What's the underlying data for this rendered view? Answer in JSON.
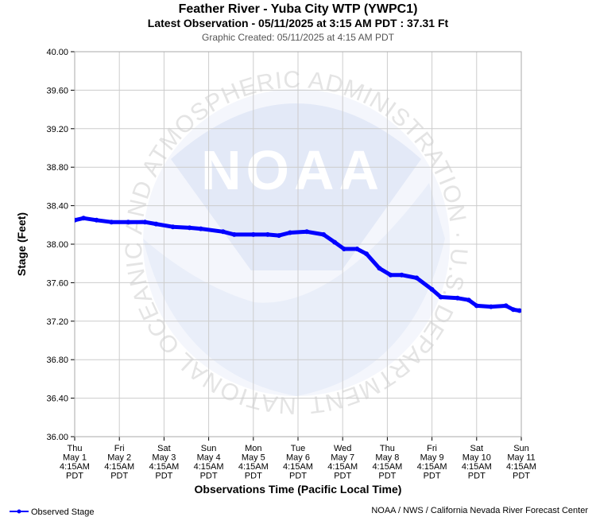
{
  "title": "Feather River - Yuba City WTP (YWPC1)",
  "subtitle": "Latest Observation - 05/11/2025 at 3:15 AM PDT : 37.31 Ft",
  "created": "Graphic Created: 05/11/2025 at 4:15 AM PDT",
  "watermark": {
    "logo_text": "NOAA",
    "ring_text": "NATIONAL OCEANIC AND ATMOSPHERIC ADMINISTRATION · U.S. DEPARTMENT OF COMMERCE"
  },
  "footer": {
    "legend_label": "Observed Stage",
    "credit": "NOAA / NWS / California Nevada River Forecast Center"
  },
  "colors": {
    "series": "#0000ff",
    "grid": "#cccccc",
    "watermark": "#e6ecf8"
  },
  "chart_data": {
    "type": "line",
    "xlabel": "Observations Time (Pacific Local Time)",
    "ylabel": "Stage (Feet)",
    "ylim": [
      36.0,
      40.0
    ],
    "yticks": [
      "36.00",
      "36.40",
      "36.80",
      "37.20",
      "37.60",
      "38.00",
      "38.40",
      "38.80",
      "39.20",
      "39.60",
      "40.00"
    ],
    "xlim": [
      "05/01/2025 04:15",
      "05/11/2025 04:15"
    ],
    "xticks": [
      [
        "Thu",
        "May 1",
        "4:15AM",
        "PDT"
      ],
      [
        "Fri",
        "May 2",
        "4:15AM",
        "PDT"
      ],
      [
        "Sat",
        "May 3",
        "4:15AM",
        "PDT"
      ],
      [
        "Sun",
        "May 4",
        "4:15AM",
        "PDT"
      ],
      [
        "Mon",
        "May 5",
        "4:15AM",
        "PDT"
      ],
      [
        "Tue",
        "May 6",
        "4:15AM",
        "PDT"
      ],
      [
        "Wed",
        "May 7",
        "4:15AM",
        "PDT"
      ],
      [
        "Thu",
        "May 8",
        "4:15AM",
        "PDT"
      ],
      [
        "Fri",
        "May 9",
        "4:15AM",
        "PDT"
      ],
      [
        "Sat",
        "May 10",
        "4:15AM",
        "PDT"
      ],
      [
        "Sun",
        "May 11",
        "4:15AM",
        "PDT"
      ]
    ],
    "grid": true,
    "legend": "bottom-left",
    "series": [
      {
        "name": "Observed Stage",
        "x": [
          "05/01/2025 04:15",
          "05/01/2025 09:00",
          "05/01/2025 16:00",
          "05/02/2025 00:00",
          "05/02/2025 09:00",
          "05/02/2025 18:00",
          "05/03/2025 00:00",
          "05/03/2025 09:00",
          "05/03/2025 18:00",
          "05/04/2025 00:00",
          "05/04/2025 12:00",
          "05/04/2025 18:00",
          "05/05/2025 04:15",
          "05/05/2025 12:00",
          "05/05/2025 18:00",
          "05/06/2025 00:00",
          "05/06/2025 09:00",
          "05/06/2025 18:00",
          "05/07/2025 00:00",
          "05/07/2025 05:00",
          "05/07/2025 12:00",
          "05/07/2025 17:00",
          "05/08/2025 00:00",
          "05/08/2025 06:00",
          "05/08/2025 12:00",
          "05/08/2025 20:00",
          "05/09/2025 04:15",
          "05/09/2025 09:00",
          "05/09/2025 18:00",
          "05/10/2025 00:00",
          "05/10/2025 04:15",
          "05/10/2025 12:00",
          "05/10/2025 20:00",
          "05/11/2025 00:00",
          "05/11/2025 03:15"
        ],
        "y": [
          38.25,
          38.27,
          38.25,
          38.23,
          38.23,
          38.23,
          38.21,
          38.18,
          38.17,
          38.16,
          38.13,
          38.1,
          38.1,
          38.1,
          38.09,
          38.12,
          38.13,
          38.1,
          38.02,
          37.95,
          37.95,
          37.9,
          37.75,
          37.68,
          37.68,
          37.65,
          37.53,
          37.45,
          37.44,
          37.42,
          37.36,
          37.35,
          37.36,
          37.32,
          37.31
        ]
      }
    ]
  }
}
